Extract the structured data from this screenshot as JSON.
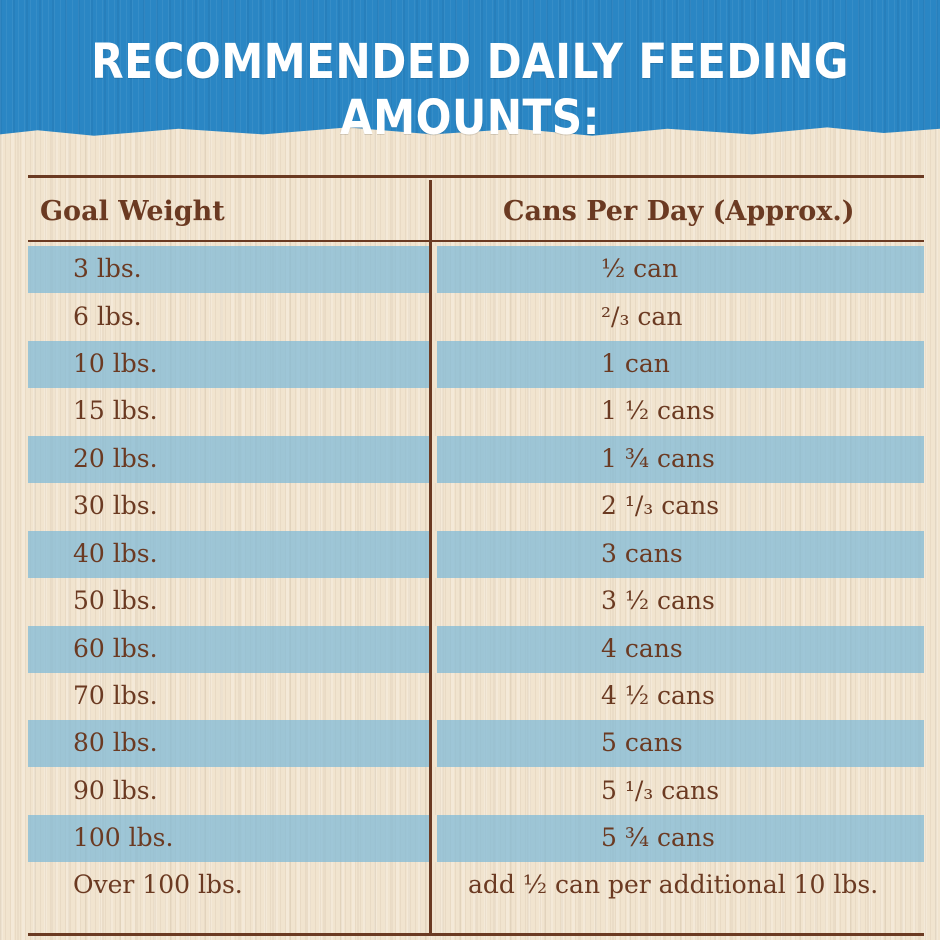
{
  "title": "RECOMMENDED DAILY FEEDING AMOUNTS:",
  "columns": {
    "weight": "Goal Weight",
    "cans": "Cans Per Day (Approx.)"
  },
  "rows": [
    {
      "weight": "3 lbs.",
      "cans": "½ can"
    },
    {
      "weight": "6 lbs.",
      "cans": "²/₃ can"
    },
    {
      "weight": "10 lbs.",
      "cans": "1 can"
    },
    {
      "weight": "15 lbs.",
      "cans": "1 ½ cans"
    },
    {
      "weight": "20 lbs.",
      "cans": "1 ¾ cans"
    },
    {
      "weight": "30 lbs.",
      "cans": "2 ¹/₃ cans"
    },
    {
      "weight": "40 lbs.",
      "cans": "3 cans"
    },
    {
      "weight": "50 lbs.",
      "cans": "3 ½ cans"
    },
    {
      "weight": "60 lbs.",
      "cans": "4 cans"
    },
    {
      "weight": "70 lbs.",
      "cans": "4 ½ cans"
    },
    {
      "weight": "80 lbs.",
      "cans": "5 cans"
    },
    {
      "weight": "90 lbs.",
      "cans": "5 ¹/₃ cans"
    },
    {
      "weight": "100 lbs.",
      "cans": "5 ¾ cans"
    },
    {
      "weight": "Over 100 lbs.",
      "cans": "add ½ can per additional 10 lbs."
    }
  ],
  "colors": {
    "header_blue": "#2a86c4",
    "band_blue": "#7db9d7",
    "text_brown": "#6b3a22",
    "paper": "#f1e4cf"
  }
}
